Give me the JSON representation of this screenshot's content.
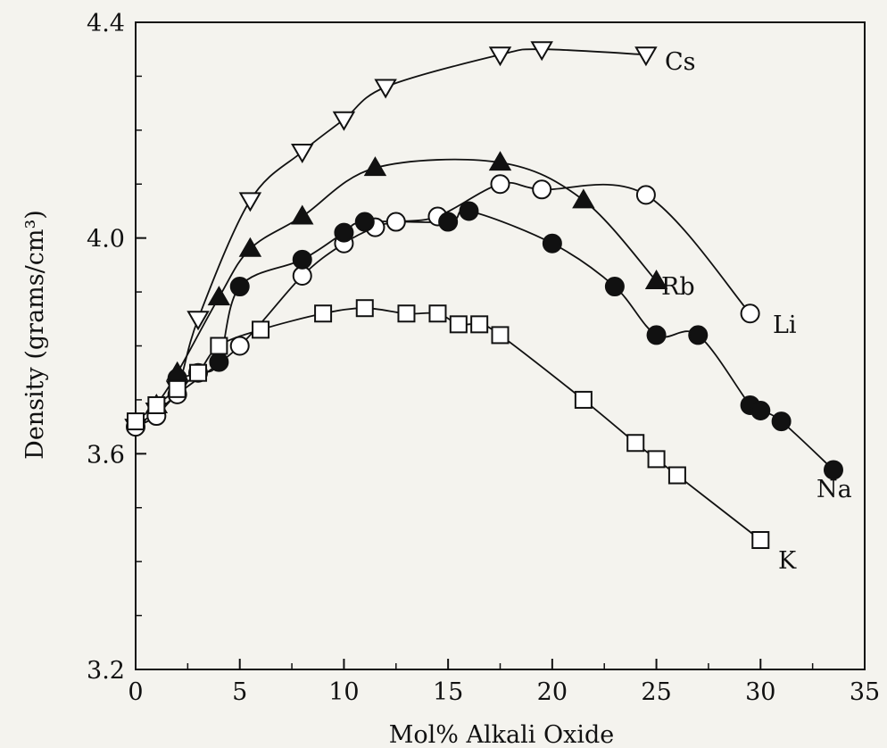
{
  "chart_data": {
    "type": "scatter",
    "xlabel": "Mol% Alkali Oxide",
    "ylabel": "Density   (grams/cm³)",
    "xlim": [
      0,
      35
    ],
    "ylim": [
      3.2,
      4.4
    ],
    "x_ticks": [
      "0",
      "5",
      "10",
      "15",
      "20",
      "25",
      "30",
      "35"
    ],
    "y_ticks": [
      "3.2",
      "3.6",
      "4.0",
      "4.4"
    ],
    "grid": false,
    "series": [
      {
        "label": "Cs",
        "marker": "triangle-down-open",
        "points": [
          [
            0,
            3.65
          ],
          [
            1,
            3.68
          ],
          [
            2,
            3.72
          ],
          [
            3,
            3.85
          ],
          [
            5.5,
            4.07
          ],
          [
            8,
            4.16
          ],
          [
            10,
            4.22
          ],
          [
            12,
            4.28
          ],
          [
            17.5,
            4.34
          ],
          [
            19.5,
            4.35
          ],
          [
            24.5,
            4.34
          ]
        ]
      },
      {
        "label": "Rb",
        "marker": "triangle-up-filled",
        "points": [
          [
            1,
            3.69
          ],
          [
            2,
            3.75
          ],
          [
            4,
            3.89
          ],
          [
            5.5,
            3.98
          ],
          [
            8,
            4.04
          ],
          [
            11.5,
            4.13
          ],
          [
            17.5,
            4.14
          ],
          [
            21.5,
            4.07
          ],
          [
            25,
            3.92
          ]
        ]
      },
      {
        "label": "Li",
        "marker": "circle-open",
        "points": [
          [
            0,
            3.65
          ],
          [
            1,
            3.67
          ],
          [
            2,
            3.71
          ],
          [
            5,
            3.8
          ],
          [
            8,
            3.93
          ],
          [
            10,
            3.99
          ],
          [
            11.5,
            4.02
          ],
          [
            12.5,
            4.03
          ],
          [
            14.5,
            4.04
          ],
          [
            17.5,
            4.1
          ],
          [
            19.5,
            4.09
          ],
          [
            24.5,
            4.08
          ],
          [
            29.5,
            3.86
          ]
        ]
      },
      {
        "label": "Na",
        "marker": "circle-filled",
        "points": [
          [
            2,
            3.74
          ],
          [
            3,
            3.75
          ],
          [
            4,
            3.77
          ],
          [
            5,
            3.91
          ],
          [
            8,
            3.96
          ],
          [
            10,
            4.01
          ],
          [
            11,
            4.03
          ],
          [
            15,
            4.03
          ],
          [
            16,
            4.05
          ],
          [
            20,
            3.99
          ],
          [
            23,
            3.91
          ],
          [
            25,
            3.82
          ],
          [
            27,
            3.82
          ],
          [
            29.5,
            3.69
          ],
          [
            30,
            3.68
          ],
          [
            31,
            3.66
          ],
          [
            33.5,
            3.57
          ]
        ]
      },
      {
        "label": "K",
        "marker": "square-open",
        "points": [
          [
            0,
            3.66
          ],
          [
            1,
            3.69
          ],
          [
            2,
            3.72
          ],
          [
            3,
            3.75
          ],
          [
            4,
            3.8
          ],
          [
            6,
            3.83
          ],
          [
            9,
            3.86
          ],
          [
            11,
            3.87
          ],
          [
            13,
            3.86
          ],
          [
            14.5,
            3.86
          ],
          [
            15.5,
            3.84
          ],
          [
            16.5,
            3.84
          ],
          [
            17.5,
            3.82
          ],
          [
            21.5,
            3.7
          ],
          [
            24,
            3.62
          ],
          [
            25,
            3.59
          ],
          [
            26,
            3.56
          ],
          [
            30,
            3.44
          ]
        ]
      }
    ]
  }
}
